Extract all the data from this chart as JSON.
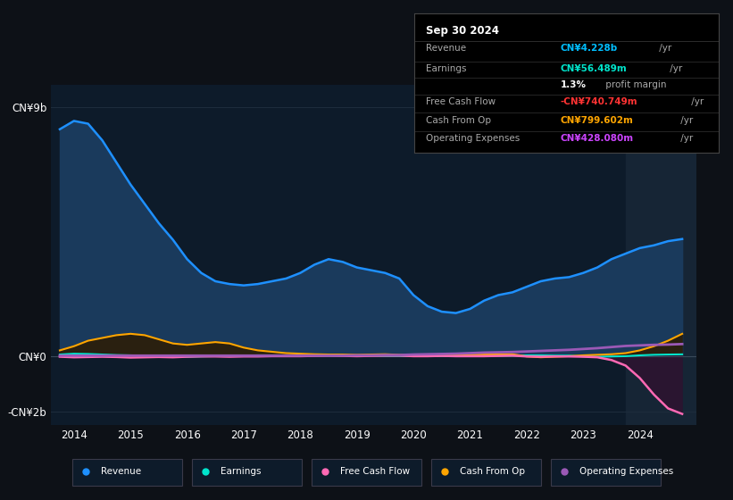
{
  "background_color": "#0d1117",
  "chart_bg_color": "#0d1b2a",
  "title": "Sep 30 2024",
  "info_box_rows": [
    {
      "label": "Revenue",
      "value": "CN¥4.228b",
      "suffix": " /yr",
      "value_color": "#00bfff"
    },
    {
      "label": "Earnings",
      "value": "CN¥56.489m",
      "suffix": " /yr",
      "value_color": "#00e5cc"
    },
    {
      "label": "",
      "value": "1.3%",
      "suffix": " profit margin",
      "value_color": "#ffffff"
    },
    {
      "label": "Free Cash Flow",
      "value": "-CN¥740.749m",
      "suffix": " /yr",
      "value_color": "#ff3333"
    },
    {
      "label": "Cash From Op",
      "value": "CN¥799.602m",
      "suffix": " /yr",
      "value_color": "#ffa500"
    },
    {
      "label": "Operating Expenses",
      "value": "CN¥428.080m",
      "suffix": " /yr",
      "value_color": "#cc44ff"
    }
  ],
  "ylabel_top": "CN¥9b",
  "ylabel_mid": "CN¥0",
  "ylabel_bot": "-CN¥2b",
  "revenue_color": "#1e90ff",
  "revenue_fill": "#1a3a5c",
  "earnings_color": "#00e5cc",
  "fcf_color": "#ff69b4",
  "fcf_fill": "#3d1a3a",
  "cashfromop_color": "#ffa500",
  "cashfromop_fill": "#2a2a1a",
  "opex_color": "#9b59b6",
  "grid_color": "#1e2d3d",
  "shaded_region_color": "#162535",
  "legend_bg": "#0d1b2a",
  "legend_border": "#3a3a4a",
  "legend_items": [
    {
      "label": "Revenue",
      "color": "#1e90ff"
    },
    {
      "label": "Earnings",
      "color": "#00e5cc"
    },
    {
      "label": "Free Cash Flow",
      "color": "#ff69b4"
    },
    {
      "label": "Cash From Op",
      "color": "#ffa500"
    },
    {
      "label": "Operating Expenses",
      "color": "#9b59b6"
    }
  ]
}
